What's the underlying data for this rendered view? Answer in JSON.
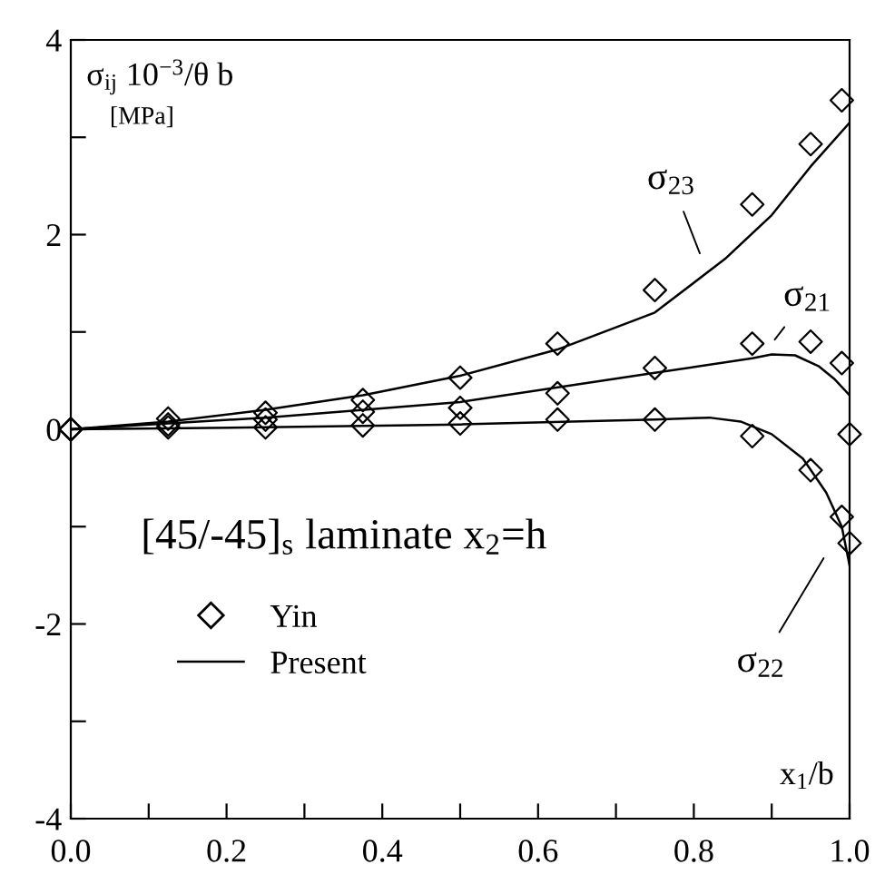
{
  "chart_data": {
    "type": "line",
    "xlabel": "x$_{1}$/b",
    "ylabel": "σ$_{ij}$ 10$^{−3}$/θ b",
    "xlim": [
      0,
      1.0
    ],
    "ylim": [
      -4,
      4
    ],
    "xticks": [
      {
        "value": 0,
        "label": "0.0"
      },
      {
        "value": 0.1,
        "label": null
      },
      {
        "value": 0.2,
        "label": "0.2"
      },
      {
        "value": 0.3,
        "label": null
      },
      {
        "value": 0.4,
        "label": "0.4"
      },
      {
        "value": 0.5,
        "label": null
      },
      {
        "value": 0.6,
        "label": "0.6"
      },
      {
        "value": 0.7,
        "label": null
      },
      {
        "value": 0.8,
        "label": "0.8"
      },
      {
        "value": 0.9,
        "label": null
      },
      {
        "value": 1.0,
        "label": "1.0"
      }
    ],
    "yticks": [
      -4,
      {
        "value": -3,
        "label": null
      },
      -2,
      {
        "value": -1,
        "label": null
      },
      0,
      {
        "value": 1,
        "label": null
      },
      2,
      {
        "value": 3,
        "label": null
      },
      4
    ],
    "grid": false,
    "legend": "bottom left",
    "series": [
      {
        "name": "Yin",
        "type": "scatter",
        "marker": "diamond",
        "color": "#000000",
        "x": [
          0,
          0.125,
          0.25,
          0.375,
          0.5,
          0.625,
          0.75,
          0.875,
          0.95,
          0.99
        ],
        "values": [
          0,
          0.11,
          0.17,
          0.3,
          0.53,
          0.88,
          1.43,
          2.31,
          2.93,
          3.38
        ]
      },
      {
        "type": "scatter",
        "marker": "diamond",
        "color": "#000000",
        "x": [
          0,
          0.125,
          0.25,
          0.375,
          0.5,
          0.625,
          0.75,
          0.875,
          0.95,
          0.99,
          1.0
        ],
        "values": [
          0,
          0.05,
          0.1,
          0.18,
          0.22,
          0.37,
          0.63,
          0.88,
          0.9,
          0.68,
          -0.05
        ]
      },
      {
        "type": "scatter",
        "marker": "diamond",
        "color": "#000000",
        "x": [
          0,
          0.125,
          0.25,
          0.375,
          0.5,
          0.625,
          0.75,
          0.875,
          0.95,
          0.99,
          1.0
        ],
        "values": [
          0,
          0.02,
          0.02,
          0.04,
          0.06,
          0.1,
          0.1,
          -0.07,
          -0.42,
          -0.9,
          -1.17
        ]
      },
      {
        "name": "Present",
        "color": "#000000",
        "x": [
          0,
          0.125,
          0.25,
          0.375,
          0.5,
          0.625,
          0.75,
          0.84,
          0.9,
          0.95,
          1.0
        ],
        "values": [
          0,
          0.08,
          0.2,
          0.35,
          0.55,
          0.82,
          1.2,
          1.75,
          2.2,
          2.7,
          3.15
        ]
      },
      {
        "color": "#000000",
        "x": [
          0,
          0.25,
          0.5,
          0.75,
          0.875,
          0.9,
          0.93,
          0.96,
          0.98,
          1.0
        ],
        "values": [
          0,
          0.12,
          0.28,
          0.58,
          0.73,
          0.77,
          0.76,
          0.65,
          0.52,
          0.35
        ]
      },
      {
        "color": "#000000",
        "x": [
          0,
          0.25,
          0.5,
          0.75,
          0.82,
          0.86,
          0.9,
          0.94,
          0.97,
          0.99,
          1.0
        ],
        "values": [
          0,
          0.02,
          0.05,
          0.1,
          0.12,
          0.08,
          -0.05,
          -0.3,
          -0.65,
          -1.0,
          -1.4
        ]
      }
    ],
    "annotations": [
      "[MPa]",
      "[45/-45]$_{s}$ laminate x$_{2}$=h",
      "σ$_{23}$",
      "σ$_{21}$",
      "σ$_{22}$"
    ]
  }
}
